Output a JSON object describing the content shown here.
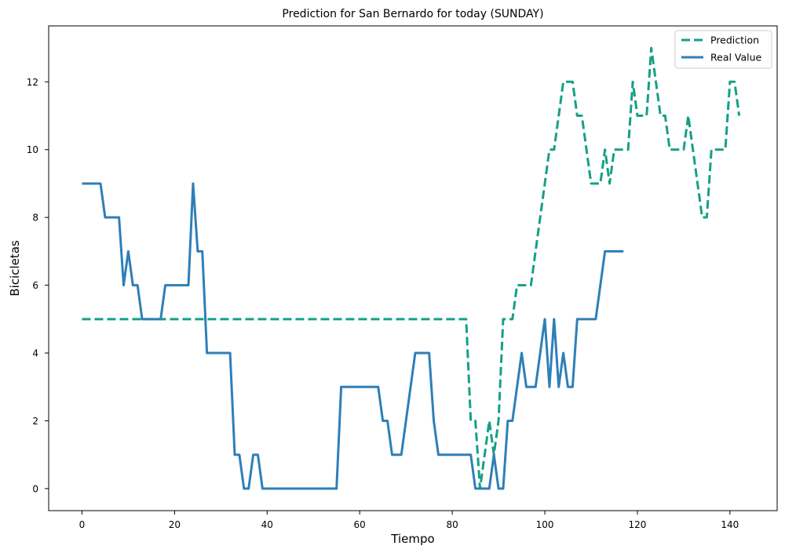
{
  "chart_data": {
    "type": "line",
    "title": "Prediction for San Bernardo for today (SUNDAY)",
    "xlabel": "Tiempo",
    "ylabel": "Bicicletas",
    "xlim": [
      -7.2,
      150.2
    ],
    "ylim": [
      -0.65,
      13.65
    ],
    "xticks": [
      0,
      20,
      40,
      60,
      80,
      100,
      120,
      140
    ],
    "yticks": [
      0,
      2,
      4,
      6,
      8,
      10,
      12
    ],
    "legend_position": "top-right",
    "grid": false,
    "series": [
      {
        "name": "Prediction",
        "color": "#16a085",
        "dash": "dashed",
        "points": [
          [
            0,
            5
          ],
          [
            83,
            5
          ],
          [
            84,
            2
          ],
          [
            85,
            2
          ],
          [
            86,
            0
          ],
          [
            87,
            1
          ],
          [
            88,
            2
          ],
          [
            89,
            1
          ],
          [
            90,
            2
          ],
          [
            91,
            5
          ],
          [
            92,
            5
          ],
          [
            93,
            5
          ],
          [
            94,
            6
          ],
          [
            97,
            6
          ],
          [
            98,
            7
          ],
          [
            100,
            9
          ],
          [
            101,
            10
          ],
          [
            102,
            10
          ],
          [
            103,
            11
          ],
          [
            104,
            12
          ],
          [
            106,
            12
          ],
          [
            107,
            11
          ],
          [
            108,
            11
          ],
          [
            110,
            9
          ],
          [
            112,
            9
          ],
          [
            113,
            10
          ],
          [
            114,
            9
          ],
          [
            115,
            10
          ],
          [
            117,
            10
          ],
          [
            118,
            10
          ],
          [
            119,
            12
          ],
          [
            120,
            11
          ],
          [
            122,
            11
          ],
          [
            123,
            13
          ],
          [
            125,
            11
          ],
          [
            126,
            11
          ],
          [
            127,
            10
          ],
          [
            130,
            10
          ],
          [
            131,
            11
          ],
          [
            133,
            9
          ],
          [
            134,
            8
          ],
          [
            135,
            8
          ],
          [
            136,
            10
          ],
          [
            139,
            10
          ],
          [
            140,
            12
          ],
          [
            141,
            12
          ],
          [
            142,
            11
          ]
        ]
      },
      {
        "name": "Real Value",
        "color": "#2e7fb8",
        "dash": "solid",
        "points": [
          [
            0,
            9
          ],
          [
            4,
            9
          ],
          [
            5,
            8
          ],
          [
            8,
            8
          ],
          [
            9,
            6
          ],
          [
            10,
            7
          ],
          [
            11,
            6
          ],
          [
            12,
            6
          ],
          [
            13,
            5
          ],
          [
            17,
            5
          ],
          [
            18,
            6
          ],
          [
            23,
            6
          ],
          [
            24,
            9
          ],
          [
            25,
            7
          ],
          [
            26,
            7
          ],
          [
            27,
            4
          ],
          [
            32,
            4
          ],
          [
            33,
            1
          ],
          [
            34,
            1
          ],
          [
            35,
            0
          ],
          [
            36,
            0
          ],
          [
            37,
            1
          ],
          [
            38,
            1
          ],
          [
            39,
            0
          ],
          [
            55,
            0
          ],
          [
            56,
            3
          ],
          [
            64,
            3
          ],
          [
            65,
            2
          ],
          [
            66,
            2
          ],
          [
            67,
            1
          ],
          [
            69,
            1
          ],
          [
            72,
            4
          ],
          [
            75,
            4
          ],
          [
            76,
            2
          ],
          [
            77,
            1
          ],
          [
            84,
            1
          ],
          [
            85,
            0
          ],
          [
            88,
            0
          ],
          [
            89,
            1
          ],
          [
            90,
            0
          ],
          [
            91,
            0
          ],
          [
            92,
            2
          ],
          [
            93,
            2
          ],
          [
            95,
            4
          ],
          [
            96,
            3
          ],
          [
            98,
            3
          ],
          [
            100,
            5
          ],
          [
            101,
            3
          ],
          [
            102,
            5
          ],
          [
            103,
            3
          ],
          [
            104,
            4
          ],
          [
            105,
            3
          ],
          [
            106,
            3
          ],
          [
            107,
            5
          ],
          [
            111,
            5
          ],
          [
            113,
            7
          ],
          [
            117,
            7
          ]
        ]
      }
    ]
  }
}
